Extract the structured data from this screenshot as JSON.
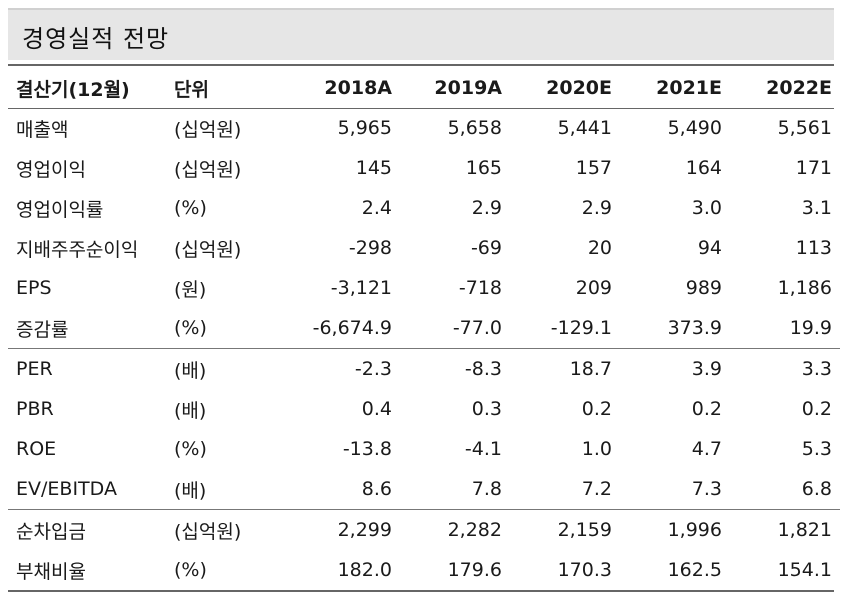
{
  "title": "경영실적 전망",
  "header": {
    "label": "결산기(12월)",
    "unit": "단위",
    "years": [
      "2018A",
      "2019A",
      "2020E",
      "2021E",
      "2022E"
    ]
  },
  "groups": [
    [
      {
        "label": "매출액",
        "unit": "(십억원)",
        "values": [
          "5,965",
          "5,658",
          "5,441",
          "5,490",
          "5,561"
        ]
      },
      {
        "label": "영업이익",
        "unit": "(십억원)",
        "values": [
          "145",
          "165",
          "157",
          "164",
          "171"
        ]
      },
      {
        "label": "영업이익률",
        "unit": "(%)",
        "values": [
          "2.4",
          "2.9",
          "2.9",
          "3.0",
          "3.1"
        ]
      },
      {
        "label": "지배주주순이익",
        "unit": "(십억원)",
        "values": [
          "-298",
          "-69",
          "20",
          "94",
          "113"
        ]
      },
      {
        "label": "EPS",
        "unit": "(원)",
        "values": [
          "-3,121",
          "-718",
          "209",
          "989",
          "1,186"
        ]
      },
      {
        "label": "증감률",
        "unit": "(%)",
        "values": [
          "-6,674.9",
          "-77.0",
          "-129.1",
          "373.9",
          "19.9"
        ]
      }
    ],
    [
      {
        "label": "PER",
        "unit": "(배)",
        "values": [
          "-2.3",
          "-8.3",
          "18.7",
          "3.9",
          "3.3"
        ]
      },
      {
        "label": "PBR",
        "unit": "(배)",
        "values": [
          "0.4",
          "0.3",
          "0.2",
          "0.2",
          "0.2"
        ]
      },
      {
        "label": "ROE",
        "unit": "(%)",
        "values": [
          "-13.8",
          "-4.1",
          "1.0",
          "4.7",
          "5.3"
        ]
      },
      {
        "label": "EV/EBITDA",
        "unit": "(배)",
        "values": [
          "8.6",
          "7.8",
          "7.2",
          "7.3",
          "6.8"
        ]
      }
    ],
    [
      {
        "label": "순차입금",
        "unit": "(십억원)",
        "values": [
          "2,299",
          "2,282",
          "2,159",
          "1,996",
          "1,821"
        ]
      },
      {
        "label": "부채비율",
        "unit": "(%)",
        "values": [
          "182.0",
          "179.6",
          "170.3",
          "162.5",
          "154.1"
        ]
      }
    ]
  ]
}
